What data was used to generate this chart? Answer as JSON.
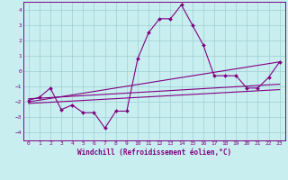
{
  "xlabel": "Windchill (Refroidissement éolien,°C)",
  "background_color": "#c8eef0",
  "grid_color": "#9ecfd4",
  "line_color": "#800080",
  "xlim": [
    -0.5,
    23.5
  ],
  "ylim": [
    -4.5,
    4.5
  ],
  "yticks": [
    -4,
    -3,
    -2,
    -1,
    0,
    1,
    2,
    3,
    4
  ],
  "xticks": [
    0,
    1,
    2,
    3,
    4,
    5,
    6,
    7,
    8,
    9,
    10,
    11,
    12,
    13,
    14,
    15,
    16,
    17,
    18,
    19,
    20,
    21,
    22,
    23
  ],
  "series": [
    {
      "x": [
        0,
        1,
        2,
        3,
        4,
        5,
        6,
        7,
        8,
        9,
        10,
        11,
        12,
        13,
        14,
        15,
        16,
        17,
        18,
        19,
        20,
        21,
        22,
        23
      ],
      "y": [
        -1.9,
        -1.7,
        -1.1,
        -2.5,
        -2.2,
        -2.7,
        -2.7,
        -3.7,
        -2.6,
        -2.6,
        0.8,
        2.5,
        3.4,
        3.4,
        4.3,
        3.0,
        1.7,
        -0.3,
        -0.3,
        -0.3,
        -1.1,
        -1.1,
        -0.4,
        0.6
      ],
      "marker": "D",
      "markersize": 2.0,
      "linewidth": 0.8
    },
    {
      "x": [
        0,
        23
      ],
      "y": [
        -2.0,
        0.6
      ],
      "marker": null,
      "linewidth": 0.8
    },
    {
      "x": [
        0,
        23
      ],
      "y": [
        -1.8,
        -0.85
      ],
      "marker": null,
      "linewidth": 0.8
    },
    {
      "x": [
        0,
        23
      ],
      "y": [
        -2.1,
        -1.2
      ],
      "marker": null,
      "linewidth": 0.8
    }
  ],
  "tick_fontsize": 4.5,
  "xlabel_fontsize": 5.5,
  "font_color": "#800080"
}
